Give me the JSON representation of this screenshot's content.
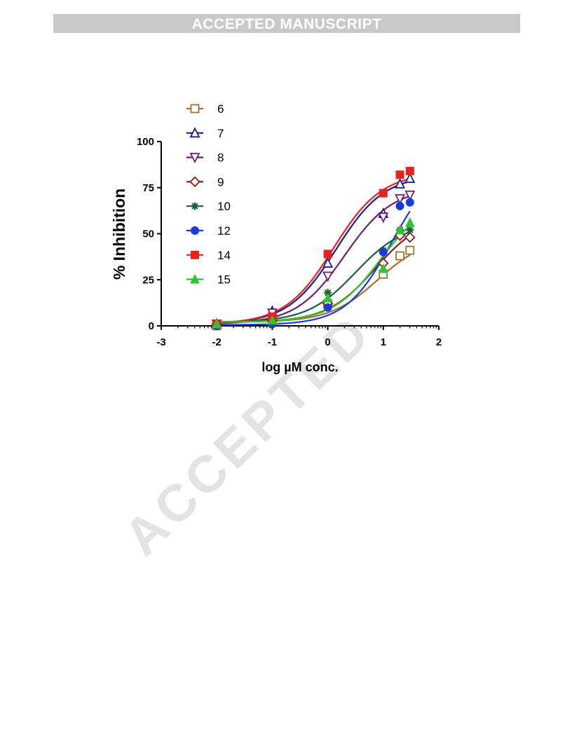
{
  "banner": "ACCEPTED MANUSCRIPT",
  "watermark": "ACCEPTED",
  "chart_data": {
    "type": "line",
    "xlabel": "log µM conc.",
    "ylabel": "% Inhibition",
    "xlim": [
      -3,
      2
    ],
    "ylim": [
      0,
      100
    ],
    "xticks": [
      "-3",
      "-2",
      "-1",
      "0",
      "1",
      "2"
    ],
    "yticks": [
      "0",
      "25",
      "50",
      "75",
      "100"
    ],
    "grid": false,
    "legend_position": "top-left",
    "x": [
      -2,
      -1,
      0,
      1,
      1.3,
      1.48
    ],
    "series": [
      {
        "name": "6",
        "color": "#a0722a",
        "marker": "square-open",
        "values": [
          0,
          4,
          12,
          28,
          38,
          41
        ],
        "fit": {
          "bottom": 2,
          "top": 48,
          "ec50log": 0.9,
          "hill": 1.0
        }
      },
      {
        "name": "7",
        "color": "#1c1c8c",
        "marker": "triangle-up-open",
        "values": [
          1,
          8,
          34,
          61,
          77,
          80
        ],
        "fit": {
          "bottom": 1,
          "top": 82,
          "ec50log": 0.15,
          "hill": 1.0
        }
      },
      {
        "name": "8",
        "color": "#6b1f6e",
        "marker": "triangle-down-open",
        "values": [
          1,
          7,
          27,
          59,
          69,
          71
        ],
        "fit": {
          "bottom": 1,
          "top": 75,
          "ec50log": 0.3,
          "hill": 1.0
        }
      },
      {
        "name": "9",
        "color": "#8b1a1a",
        "marker": "diamond-open",
        "values": [
          1,
          3,
          12,
          34,
          49,
          48
        ],
        "fit": {
          "bottom": 2,
          "top": 60,
          "ec50log": 0.85,
          "hill": 1.0
        }
      },
      {
        "name": "10",
        "color": "#1b5e3a",
        "marker": "star",
        "values": [
          1,
          4,
          18,
          41,
          52,
          52
        ],
        "fit": {
          "bottom": 2,
          "top": 56,
          "ec50log": 0.5,
          "hill": 1.0
        }
      },
      {
        "name": "12",
        "color": "#1a3bdc",
        "marker": "circle-filled",
        "values": [
          0,
          1,
          10,
          40,
          65,
          67
        ],
        "fit": {
          "bottom": 0.5,
          "top": 90,
          "ec50log": 1.15,
          "hill": 1.05
        }
      },
      {
        "name": "14",
        "color": "#e8231f",
        "marker": "square-filled",
        "values": [
          1,
          5,
          39,
          72,
          82,
          84
        ],
        "fit": {
          "bottom": 1,
          "top": 83,
          "ec50log": 0.1,
          "hill": 1.0
        }
      },
      {
        "name": "15",
        "color": "#2ec62e",
        "marker": "triangle-up-filled",
        "values": [
          1,
          3,
          15,
          31,
          52,
          56
        ],
        "fit": {
          "bottom": 2,
          "top": 70,
          "ec50log": 0.95,
          "hill": 1.0
        }
      }
    ]
  }
}
